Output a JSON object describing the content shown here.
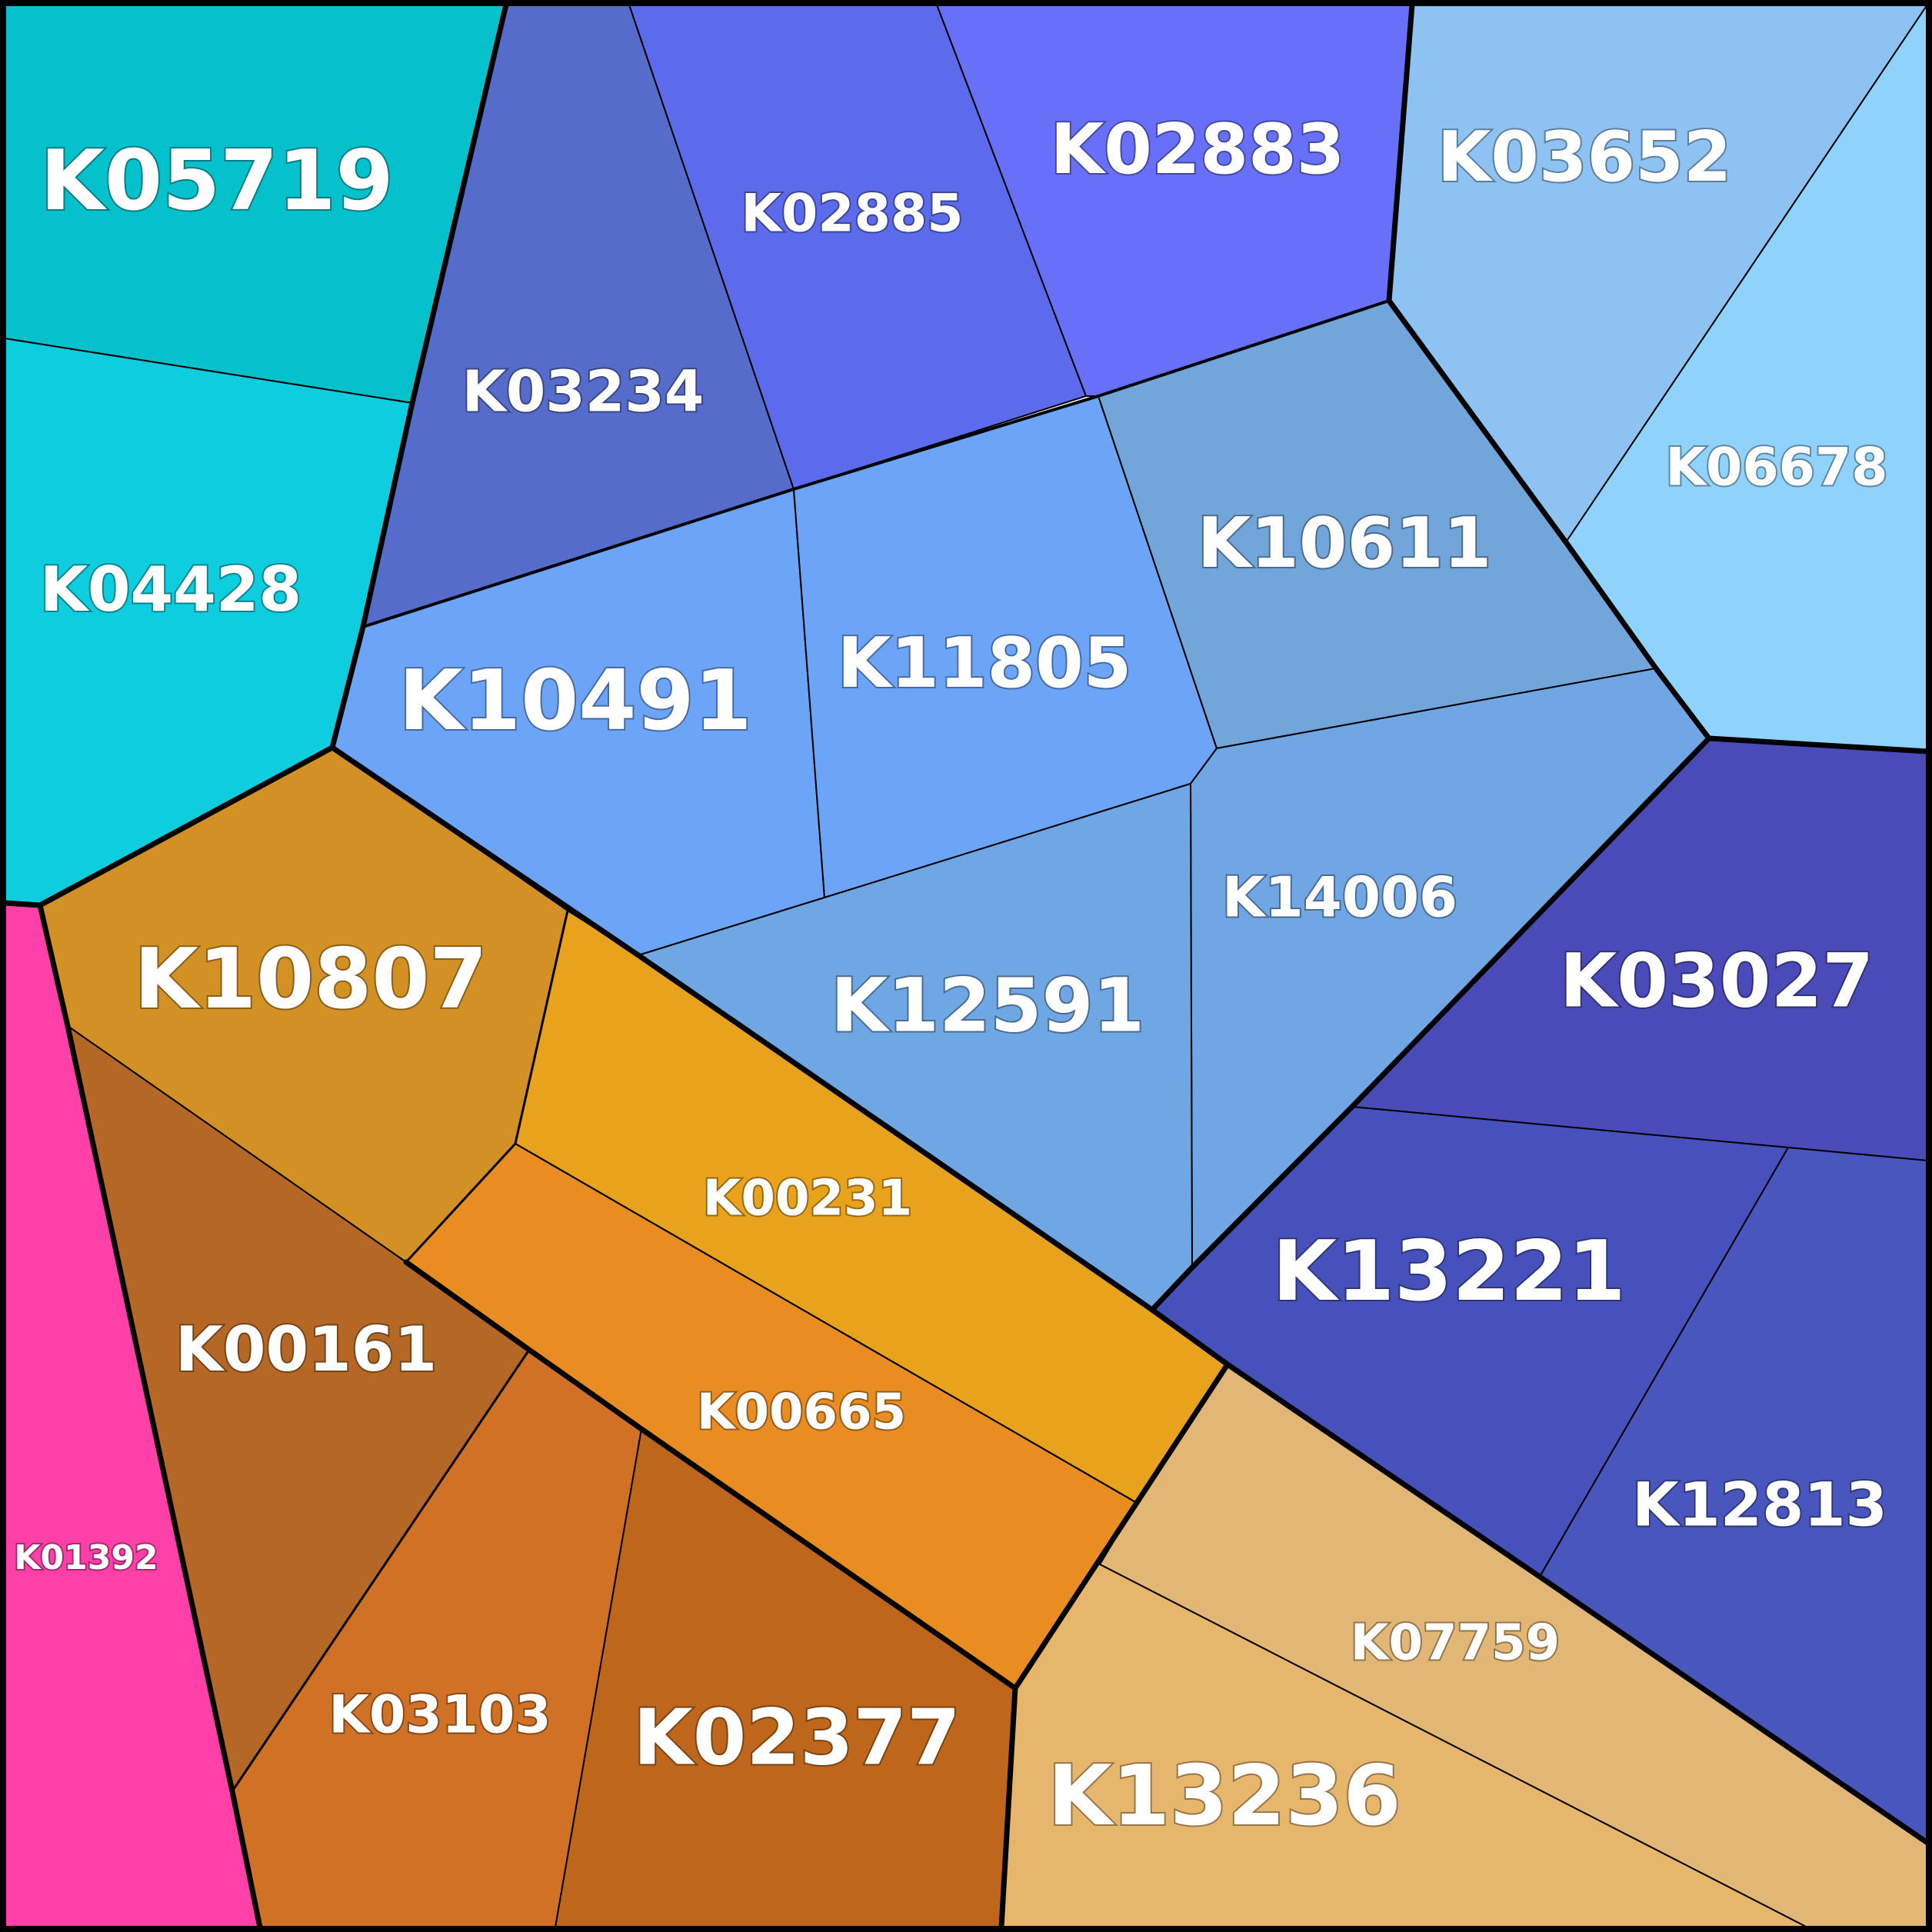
{
  "cells": [
    {
      "id": "K05719",
      "label": "K05719",
      "color": "#05C1CC"
    },
    {
      "id": "K04428",
      "label": "K04428",
      "color": "#0DCDDE"
    },
    {
      "id": "K03234",
      "label": "K03234",
      "color": "#566CCB"
    },
    {
      "id": "K02885",
      "label": "K02885",
      "color": "#5C6BEB"
    },
    {
      "id": "K02883",
      "label": "K02883",
      "color": "#6870FA"
    },
    {
      "id": "K03652",
      "label": "K03652",
      "color": "#8EC2F2"
    },
    {
      "id": "K06678",
      "label": "K06678",
      "color": "#8FD2FC"
    },
    {
      "id": "K10491",
      "label": "K10491",
      "color": "#6CA4F8"
    },
    {
      "id": "K11805",
      "label": "K11805",
      "color": "#6CA4F8"
    },
    {
      "id": "K10611",
      "label": "K10611",
      "color": "#72A5D9"
    },
    {
      "id": "K14006",
      "label": "K14006",
      "color": "#71A6E4"
    },
    {
      "id": "K12591",
      "label": "K12591",
      "color": "#6FA7E5"
    },
    {
      "id": "K03027",
      "label": "K03027",
      "color": "#4A4BB8"
    },
    {
      "id": "K13221",
      "label": "K13221",
      "color": "#4651BC"
    },
    {
      "id": "K12813",
      "label": "K12813",
      "color": "#4856BE"
    },
    {
      "id": "K10807",
      "label": "K10807",
      "color": "#D39125"
    },
    {
      "id": "K00231",
      "label": "K00231",
      "color": "#E8A21C"
    },
    {
      "id": "K00665",
      "label": "K00665",
      "color": "#E98D22"
    },
    {
      "id": "K00161",
      "label": "K00161",
      "color": "#B56726"
    },
    {
      "id": "K03103",
      "label": "K03103",
      "color": "#D07126"
    },
    {
      "id": "K02377",
      "label": "K02377",
      "color": "#BD661C"
    },
    {
      "id": "K07759",
      "label": "K07759",
      "color": "#E2B674"
    },
    {
      "id": "K13236",
      "label": "K13236",
      "color": "#E7B66D"
    },
    {
      "id": "K01392",
      "label": "K01392",
      "color": "#FF40A8"
    }
  ]
}
